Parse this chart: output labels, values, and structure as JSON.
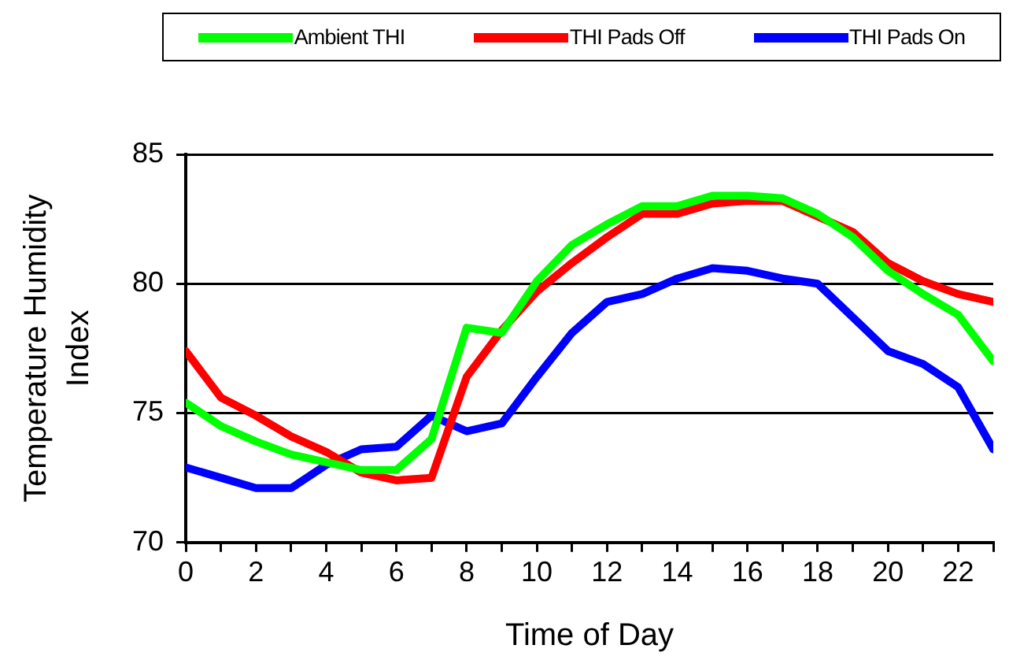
{
  "chart_data": {
    "type": "line",
    "xlabel": "Time of Day",
    "ylabel": "Temperature Humidity Index",
    "x": [
      0,
      1,
      2,
      3,
      4,
      5,
      6,
      7,
      8,
      9,
      10,
      11,
      12,
      13,
      14,
      15,
      16,
      17,
      18,
      19,
      20,
      21,
      22,
      23
    ],
    "series": [
      {
        "name": "Ambient THI",
        "color": "#00ff00",
        "values": [
          75.4,
          74.5,
          73.9,
          73.4,
          73.1,
          72.8,
          72.8,
          74.0,
          78.3,
          78.1,
          80.1,
          81.5,
          82.3,
          83.0,
          83.0,
          83.4,
          83.4,
          83.3,
          82.7,
          81.8,
          80.5,
          79.6,
          78.8,
          77.0
        ]
      },
      {
        "name": "THI Pads Off",
        "color": "#ff0000",
        "values": [
          77.4,
          75.6,
          74.9,
          74.1,
          73.5,
          72.7,
          72.4,
          72.5,
          76.4,
          78.2,
          79.7,
          80.8,
          81.8,
          82.7,
          82.7,
          83.1,
          83.2,
          83.2,
          82.6,
          82.0,
          80.8,
          80.1,
          79.6,
          79.3
        ]
      },
      {
        "name": "THI Pads On",
        "color": "#0000ff",
        "values": [
          72.9,
          72.5,
          72.1,
          72.1,
          73.0,
          73.6,
          73.7,
          74.9,
          74.3,
          74.6,
          76.4,
          78.1,
          79.3,
          79.6,
          80.2,
          80.6,
          80.5,
          80.2,
          80.0,
          78.7,
          77.4,
          76.9,
          76.0,
          73.6
        ]
      }
    ],
    "xlim": [
      0,
      23
    ],
    "xticks": [
      0,
      {
        "value": 1,
        "label": null
      },
      2,
      {
        "value": 3,
        "label": null
      },
      4,
      {
        "value": 5,
        "label": null
      },
      6,
      {
        "value": 7,
        "label": null
      },
      8,
      {
        "value": 9,
        "label": null
      },
      10,
      {
        "value": 11,
        "label": null
      },
      12,
      {
        "value": 13,
        "label": null
      },
      14,
      {
        "value": 15,
        "label": null
      },
      16,
      {
        "value": 17,
        "label": null
      },
      18,
      {
        "value": 19,
        "label": null
      },
      20,
      {
        "value": 21,
        "label": null
      },
      22,
      {
        "value": 23,
        "label": null
      }
    ],
    "ylim": [
      70,
      85
    ],
    "yticks": [
      70,
      75,
      80,
      85
    ],
    "grid": "y",
    "legend": "top",
    "marker": "none",
    "line_style": "solid"
  }
}
